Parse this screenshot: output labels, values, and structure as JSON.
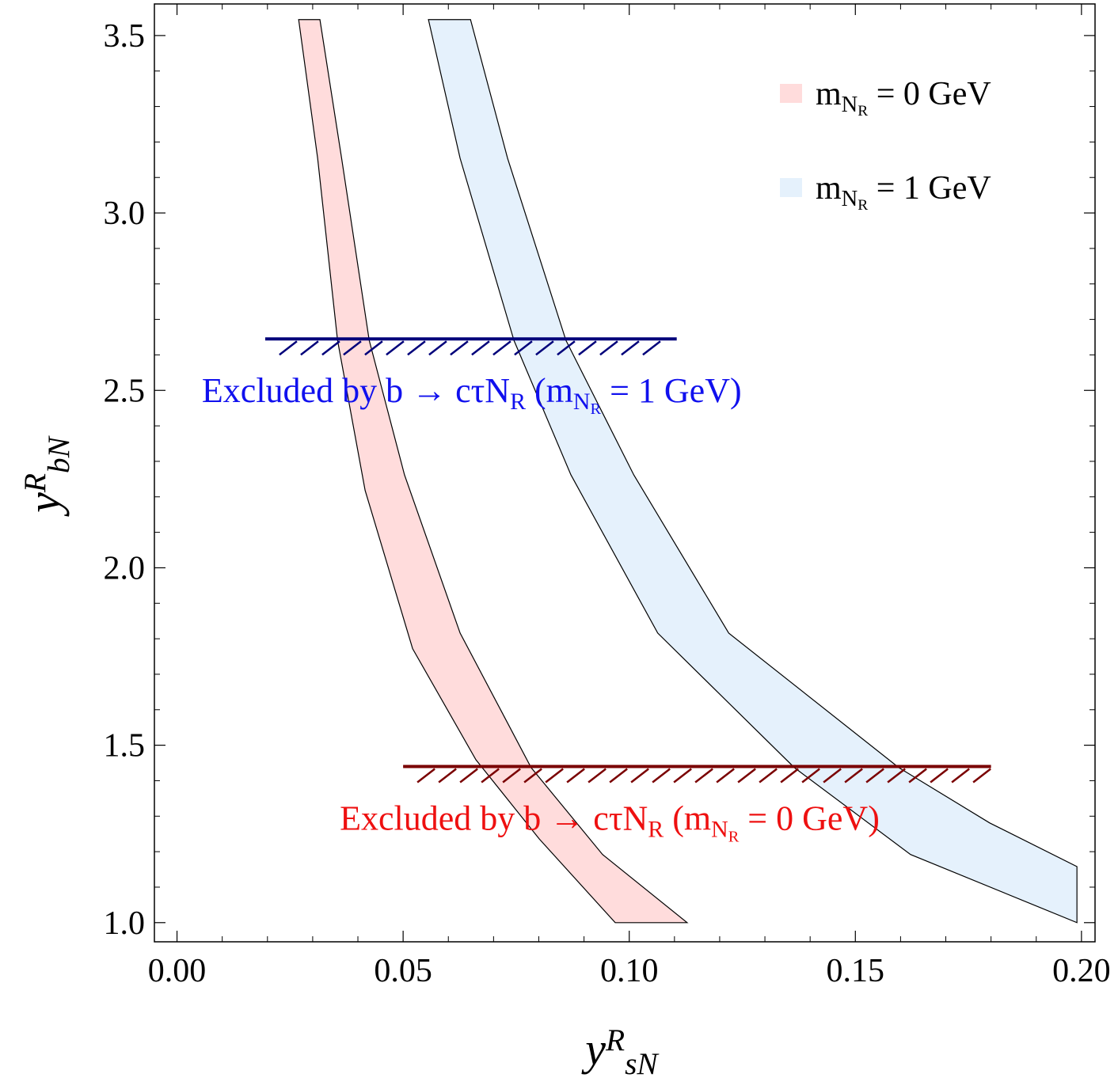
{
  "chart_data": {
    "type": "region",
    "x_label": "y^R_{sN}",
    "y_label": "y^R_{bN}",
    "xlim": [
      -0.005,
      0.203
    ],
    "ylim": [
      0.946,
      3.589
    ],
    "xticks": [
      {
        "value": 0,
        "label": "0.00"
      },
      0.05,
      {
        "value": 0.1,
        "label": "0.10"
      },
      0.15,
      {
        "value": 0.2,
        "label": "0.20"
      }
    ],
    "yticks": [
      {
        "value": 1,
        "label": "1.0"
      },
      1.5,
      {
        "value": 2,
        "label": "2.0"
      },
      2.5,
      {
        "value": 3,
        "label": "3.0"
      },
      3.5
    ],
    "xminorticks": [
      0.01,
      0.02,
      0.03,
      0.04,
      0.06,
      0.07,
      0.08,
      0.09,
      0.11,
      0.12,
      0.13,
      0.14,
      0.16,
      0.17,
      0.18,
      0.19
    ],
    "yminorticks": [
      1.1,
      1.2,
      1.3,
      1.4,
      1.6,
      1.7,
      1.8,
      1.9,
      2.1,
      2.2,
      2.3,
      2.4,
      2.6,
      2.7,
      2.8,
      2.9,
      3.1,
      3.2,
      3.3,
      3.4
    ],
    "series": [
      {
        "name": "m_{N_R} = 0 GeV",
        "color": "#ffc4c4",
        "x": [
          0.0269,
          0.0311,
          0.0355,
          0.0416,
          0.0521,
          0.0661,
          0.0801,
          0.0969,
          0.1128,
          0.0941,
          0.0783,
          0.0626,
          0.0503,
          0.0425,
          0.0364,
          0.0316
        ],
        "y": [
          3.545,
          3.154,
          2.641,
          2.218,
          1.772,
          1.459,
          1.236,
          1.0,
          1.0,
          1.192,
          1.437,
          1.816,
          2.262,
          2.641,
          3.154,
          3.545
        ]
      },
      {
        "name": "m_{N_R} = 1 GeV",
        "color": "#d3e7fa",
        "x": [
          0.0556,
          0.0626,
          0.0745,
          0.0871,
          0.1063,
          0.1365,
          0.1622,
          0.199,
          0.199,
          0.1797,
          0.1596,
          0.122,
          0.101,
          0.086,
          0.0731,
          0.0649
        ],
        "y": [
          3.545,
          3.154,
          2.641,
          2.262,
          1.816,
          1.437,
          1.192,
          1.0,
          1.158,
          1.281,
          1.437,
          1.816,
          2.262,
          2.641,
          3.154,
          3.545
        ]
      }
    ],
    "exclusions": [
      {
        "label": "Excluded by  b → cτN_R (m_{N_R} = 1 GeV)",
        "y": 2.645,
        "x": [
          0.0195,
          0.1105
        ],
        "color": "#00007a",
        "text_color": "#1010ee"
      },
      {
        "label": "Excluded by  b → cτN_R (m_{N_R} = 0 GeV)",
        "y": 1.44,
        "x": [
          0.05,
          0.18
        ],
        "color": "#7a0000",
        "text_color": "#ee1010"
      }
    ]
  }
}
